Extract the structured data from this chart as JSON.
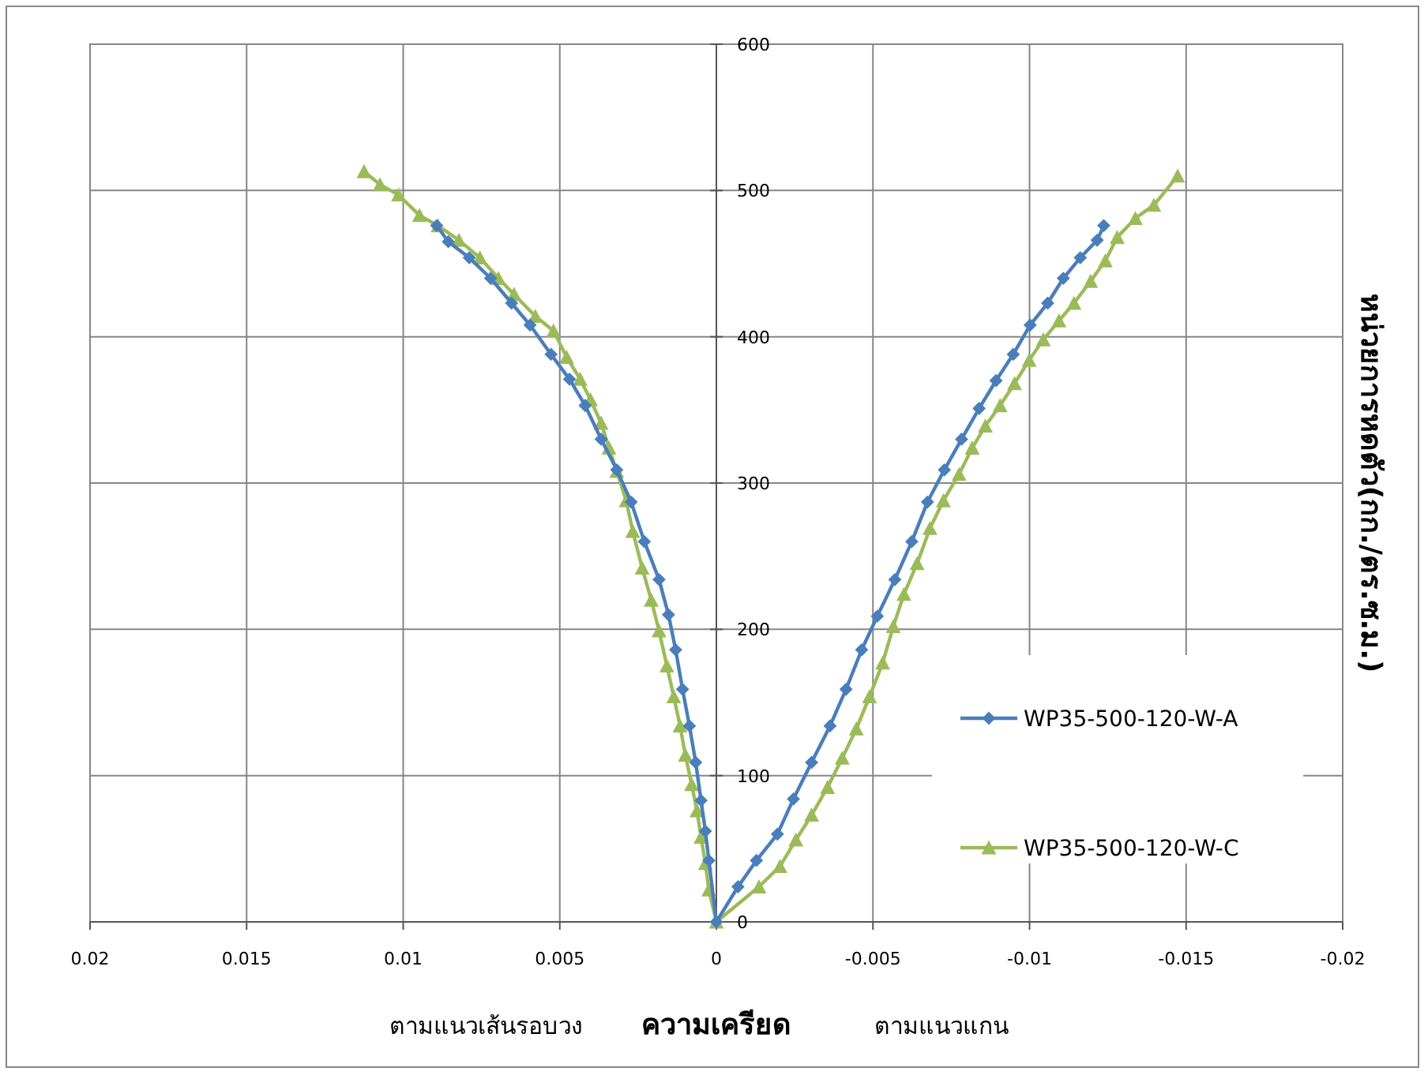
{
  "chart_data": {
    "type": "line",
    "xlabel": "ความเครียด",
    "ylabel": "หน่วยการหดตัว(กก./ตร.ซ.ม.)",
    "annotations": [
      "ตามแนวเส้นรอบวง",
      "ตามแนวแกน"
    ],
    "xlim": [
      0.02,
      -0.02
    ],
    "xticks": [
      0.02,
      0.015,
      0.01,
      0.005,
      0,
      -0.005,
      -0.01,
      -0.015,
      -0.02
    ],
    "ylim": [
      0,
      600
    ],
    "yticks": [
      0,
      100,
      200,
      300,
      400,
      500,
      600
    ],
    "grid": true,
    "legend": "right",
    "series": [
      {
        "name": "WP35-500-120-W-A",
        "color": "#4a7ebb",
        "marker": "diamond",
        "x": [
          0.00893,
          0.00856,
          0.00789,
          0.00721,
          0.00654,
          0.00595,
          0.00528,
          0.00469,
          0.00419,
          0.00368,
          0.00318,
          0.00272,
          0.0023,
          0.00183,
          0.00153,
          0.0013,
          0.00108,
          0.00086,
          0.00066,
          0.00049,
          0.00035,
          0.00024,
          0,
          -0.00069,
          -0.00128,
          -0.00195,
          -0.00246,
          -0.00304,
          -0.00363,
          -0.00414,
          -0.00464,
          -0.00514,
          -0.0057,
          -0.00624,
          -0.00674,
          -0.00728,
          -0.00783,
          -0.00839,
          -0.00893,
          -0.00948,
          -0.01002,
          -0.01058,
          -0.01108,
          -0.01162,
          -0.01216,
          -0.01237
        ],
        "values": [
          476,
          465,
          454,
          440,
          423,
          408,
          388,
          371,
          353,
          330,
          309,
          287,
          260,
          234,
          210,
          186,
          159,
          134,
          109,
          83,
          62,
          42,
          0,
          24,
          42,
          60,
          84,
          109,
          134,
          159,
          186,
          209,
          234,
          260,
          287,
          309,
          330,
          351,
          370,
          388,
          408,
          423,
          440,
          454,
          466,
          476
        ]
      },
      {
        "name": "WP35-500-120-W-C",
        "color": "#9bbb59",
        "marker": "triangle",
        "x": [
          0.01125,
          0.01074,
          0.01015,
          0.00948,
          0.00889,
          0.00822,
          0.00755,
          0.00696,
          0.00646,
          0.00578,
          0.0052,
          0.00478,
          0.00435,
          0.00402,
          0.00368,
          0.00343,
          0.00318,
          0.00288,
          0.00267,
          0.00237,
          0.00208,
          0.00183,
          0.00158,
          0.00136,
          0.00116,
          0.00099,
          0.00079,
          0.00062,
          0.00049,
          0.00035,
          0.00024,
          0,
          -0.00136,
          -0.00203,
          -0.00254,
          -0.00304,
          -0.00355,
          -0.00402,
          -0.00447,
          -0.00489,
          -0.00531,
          -0.00565,
          -0.00599,
          -0.00641,
          -0.00682,
          -0.00725,
          -0.00775,
          -0.00817,
          -0.00859,
          -0.00906,
          -0.00952,
          -0.00999,
          -0.01044,
          -0.01094,
          -0.01142,
          -0.01195,
          -0.01242,
          -0.0128,
          -0.01338,
          -0.01397,
          -0.01473
        ],
        "values": [
          513,
          504,
          497,
          483,
          476,
          466,
          454,
          440,
          429,
          414,
          404,
          386,
          371,
          357,
          341,
          324,
          308,
          288,
          267,
          242,
          220,
          199,
          175,
          154,
          134,
          114,
          94,
          76,
          58,
          40,
          22,
          0,
          24,
          38,
          56,
          73,
          92,
          112,
          132,
          154,
          177,
          202,
          224,
          245,
          269,
          288,
          306,
          324,
          339,
          353,
          368,
          384,
          398,
          411,
          423,
          438,
          452,
          468,
          481,
          490,
          510
        ]
      }
    ]
  }
}
